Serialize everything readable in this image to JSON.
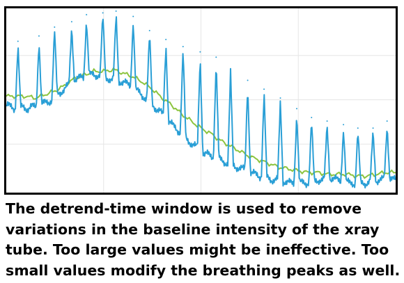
{
  "caption": "The detrend-time window is used to remove variations in the baseline intensity of the xray tube. Too large values might be ineffective. Too small values modify the breathing peaks as well.",
  "colors": {
    "raw": "#2a9fd6",
    "baseline": "#8cc43f",
    "grid": "#e6e6e6",
    "frame": "#000000"
  },
  "chart_data": {
    "type": "line",
    "title": "",
    "xlabel": "",
    "ylabel": "",
    "grid": true,
    "xlim": [
      0,
      100
    ],
    "ylim": [
      0,
      100
    ],
    "series": [
      {
        "style": "raw-with-peaks",
        "x": [
          0,
          1.1,
          2.2,
          3.3,
          4.4,
          5.5,
          6.6,
          7.7,
          8.8,
          9.9,
          11,
          12.1,
          13.2,
          14.3,
          15.4,
          16.5,
          17.6,
          18.7,
          19.8,
          20.9,
          22,
          23.1,
          24.2,
          25.3,
          26.4,
          27.5,
          28.6,
          29.7,
          30.8,
          31.9,
          33,
          34.1,
          35.2,
          36.3,
          37.4,
          38.5,
          39.6,
          40.7,
          41.8,
          42.9,
          44,
          45.1,
          46.2,
          47.3,
          48.4,
          49.5,
          50.6,
          51.7,
          52.8,
          53.9,
          55,
          56.1,
          57.2,
          58.3,
          59.4,
          60.5,
          61.6,
          62.7,
          63.8,
          64.9,
          66,
          67.1,
          68.2,
          69.3,
          70.4,
          71.5,
          72.6,
          73.7,
          74.8,
          75.9,
          77,
          78.1,
          79.2,
          80.3,
          81.4,
          82.5,
          83.6,
          84.7,
          85.8,
          86.9,
          88,
          89.1,
          90.2,
          91.3,
          92.4,
          93.5,
          94.6,
          95.7,
          96.8,
          97.9,
          99,
          100
        ],
        "y": [
          49,
          48,
          47,
          47,
          48,
          47,
          48,
          48,
          49,
          50,
          51,
          53,
          55,
          57,
          59,
          61,
          63,
          64,
          65,
          66,
          66,
          66,
          66,
          65,
          64,
          63,
          63,
          62,
          61,
          60,
          58,
          56,
          54,
          52,
          50,
          47,
          45,
          42,
          40,
          37,
          35,
          33,
          30,
          28,
          26,
          24,
          22,
          21,
          20,
          19,
          18,
          17,
          16,
          15,
          14,
          13,
          12,
          11,
          10,
          9,
          9,
          8,
          7,
          7,
          6,
          6,
          5,
          5,
          5,
          5,
          5,
          6,
          6,
          7,
          7,
          7,
          8,
          7,
          6,
          6,
          5,
          5,
          5,
          5,
          5,
          6,
          6,
          7,
          7,
          8,
          8,
          6
        ],
        "peaks": [
          {
            "x": 3.0,
            "y": 83
          },
          {
            "x": 8.4,
            "y": 86
          },
          {
            "x": 12.4,
            "y": 91
          },
          {
            "x": 16.8,
            "y": 94
          },
          {
            "x": 20.6,
            "y": 98
          },
          {
            "x": 24.8,
            "y": 99
          },
          {
            "x": 28.2,
            "y": 100
          },
          {
            "x": 32.6,
            "y": 97
          },
          {
            "x": 36.8,
            "y": 89
          },
          {
            "x": 41.0,
            "y": 84
          },
          {
            "x": 45.4,
            "y": 80
          },
          {
            "x": 49.8,
            "y": 77
          },
          {
            "x": 53.9,
            "y": 74
          },
          {
            "x": 57.6,
            "y": 67
          },
          {
            "x": 62.0,
            "y": 61
          },
          {
            "x": 66.2,
            "y": 56
          },
          {
            "x": 70.4,
            "y": 51
          },
          {
            "x": 74.6,
            "y": 45
          },
          {
            "x": 78.4,
            "y": 40
          },
          {
            "x": 82.4,
            "y": 38
          },
          {
            "x": 86.6,
            "y": 36
          },
          {
            "x": 90.3,
            "y": 34
          },
          {
            "x": 94.2,
            "y": 34
          },
          {
            "x": 97.8,
            "y": 38
          }
        ]
      },
      {
        "style": "baseline",
        "x": [
          0,
          2.5,
          5,
          7.5,
          10,
          12.5,
          15,
          17.5,
          20,
          22.5,
          25,
          27.5,
          30,
          32.5,
          35,
          37.5,
          40,
          42.5,
          45,
          47.5,
          50,
          52.5,
          55,
          57.5,
          60,
          62.5,
          65,
          67.5,
          70,
          72.5,
          75,
          77.5,
          80,
          82.5,
          85,
          87.5,
          90,
          92.5,
          95,
          97.5,
          100
        ],
        "y": [
          52,
          52,
          52,
          51,
          53,
          55,
          58,
          62,
          64,
          66,
          66,
          67,
          65,
          63,
          60,
          56,
          51,
          47,
          42,
          38,
          34,
          31,
          27,
          24,
          21,
          18,
          16,
          14,
          12,
          11,
          10,
          9,
          9,
          8,
          8,
          8,
          7,
          7,
          8,
          9,
          9
        ]
      }
    ]
  }
}
